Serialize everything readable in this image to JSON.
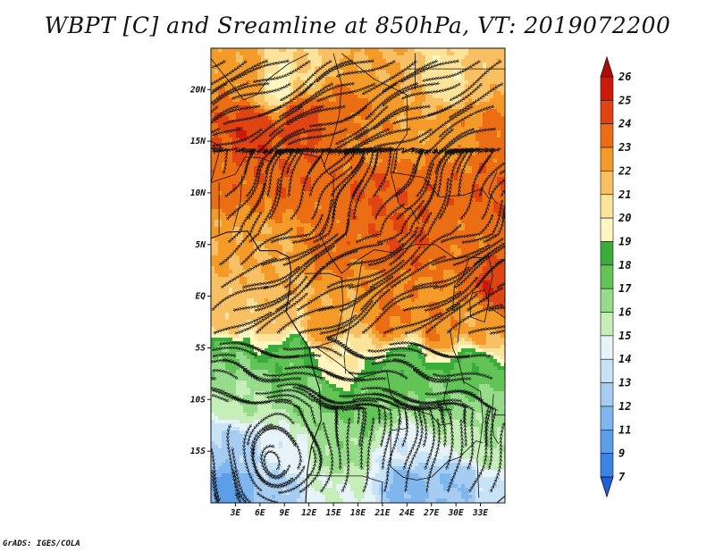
{
  "title": "WBPT [C] and Sreamline at 850hPa, VT: 2019072200",
  "footer": "GrADS: IGES/COLA",
  "chart_data": {
    "type": "heatmap",
    "variable": "WBPT [C]",
    "level": "850hPa",
    "valid_time": "2019072200",
    "overlay": "streamlines",
    "grid": false,
    "lon_range": [
      0,
      36
    ],
    "lat_range": [
      -20,
      24
    ],
    "x_ticks": [
      3,
      6,
      9,
      12,
      15,
      18,
      21,
      24,
      27,
      30,
      33
    ],
    "x_tick_labels": [
      "3E",
      "6E",
      "9E",
      "12E",
      "15E",
      "18E",
      "21E",
      "24E",
      "27E",
      "30E",
      "33E"
    ],
    "y_ticks": [
      20,
      15,
      10,
      5,
      0,
      -5,
      -10,
      -15
    ],
    "y_tick_labels": [
      "20N",
      "15N",
      "10N",
      "5N",
      "EQ",
      "5S",
      "10S",
      "15S"
    ],
    "colorbar": {
      "placement": "right",
      "levels": [
        7,
        9,
        11,
        12,
        13,
        14,
        15,
        16,
        17,
        18,
        19,
        20,
        21,
        22,
        23,
        24,
        25,
        26
      ],
      "labels": [
        "7",
        "9",
        "11",
        "12",
        "13",
        "14",
        "15",
        "16",
        "17",
        "18",
        "19",
        "20",
        "21",
        "22",
        "23",
        "24",
        "25",
        "26"
      ],
      "colors": [
        "#1e60d8",
        "#3c84e4",
        "#5c9ee8",
        "#80b6ee",
        "#a6ccf2",
        "#c8e2f6",
        "#e6f4fa",
        "#c6eeb8",
        "#96dc8a",
        "#62c456",
        "#3aac3a",
        "#fff6c0",
        "#fde49a",
        "#f8c062",
        "#f49a28",
        "#ec6e14",
        "#e04412",
        "#cc1a0a",
        "#b00c06"
      ]
    },
    "field_anchors": [
      {
        "lon": 5,
        "lat": 21,
        "value": 22.5
      },
      {
        "lon": 12,
        "lat": 22,
        "value": 21
      },
      {
        "lon": 18,
        "lat": 23,
        "value": 22
      },
      {
        "lon": 29,
        "lat": 21,
        "value": 20.3
      },
      {
        "lon": 33,
        "lat": 22,
        "value": 21.5
      },
      {
        "lon": 8,
        "lat": 20.5,
        "value": 19.5
      },
      {
        "lon": 5,
        "lat": 16,
        "value": 24.8
      },
      {
        "lon": 11,
        "lat": 17,
        "value": 24.5
      },
      {
        "lon": 16,
        "lat": 18,
        "value": 23.5
      },
      {
        "lon": 20,
        "lat": 15,
        "value": 22.8
      },
      {
        "lon": 25,
        "lat": 17,
        "value": 22.2
      },
      {
        "lon": 30,
        "lat": 16,
        "value": 22.5
      },
      {
        "lon": 35,
        "lat": 15,
        "value": 23.5
      },
      {
        "lon": 2,
        "lat": 11,
        "value": 23.5
      },
      {
        "lon": 10,
        "lat": 12,
        "value": 23.8
      },
      {
        "lon": 20,
        "lat": 10,
        "value": 24
      },
      {
        "lon": 28,
        "lat": 11,
        "value": 23.6
      },
      {
        "lon": 34,
        "lat": 10,
        "value": 23.8
      },
      {
        "lon": 2,
        "lat": 5,
        "value": 22.2
      },
      {
        "lon": 8,
        "lat": 3,
        "value": 22
      },
      {
        "lon": 15,
        "lat": 5,
        "value": 23.5
      },
      {
        "lon": 24,
        "lat": 6,
        "value": 24
      },
      {
        "lon": 32,
        "lat": 5,
        "value": 23.3
      },
      {
        "lon": 35,
        "lat": 1,
        "value": 24.8
      },
      {
        "lon": 2,
        "lat": -2,
        "value": 21.5
      },
      {
        "lon": 8,
        "lat": -2,
        "value": 21.5
      },
      {
        "lon": 14,
        "lat": -3,
        "value": 22.5
      },
      {
        "lon": 22,
        "lat": -2,
        "value": 23.2
      },
      {
        "lon": 28,
        "lat": -3,
        "value": 23
      },
      {
        "lon": 33,
        "lat": -3,
        "value": 22.3
      },
      {
        "lon": 2,
        "lat": -6,
        "value": 17
      },
      {
        "lon": 10,
        "lat": -6,
        "value": 17.5
      },
      {
        "lon": 16,
        "lat": -6,
        "value": 20
      },
      {
        "lon": 24,
        "lat": -7,
        "value": 17.5
      },
      {
        "lon": 32,
        "lat": -7,
        "value": 17.6
      },
      {
        "lon": 4,
        "lat": -10,
        "value": 16
      },
      {
        "lon": 12,
        "lat": -10,
        "value": 16.8
      },
      {
        "lon": 20,
        "lat": -10,
        "value": 17.3
      },
      {
        "lon": 28,
        "lat": -10,
        "value": 17
      },
      {
        "lon": 34,
        "lat": -11,
        "value": 16.5
      },
      {
        "lon": 3,
        "lat": -15,
        "value": 12.5
      },
      {
        "lon": 9,
        "lat": -15,
        "value": 14.5
      },
      {
        "lon": 16,
        "lat": -15,
        "value": 16.5
      },
      {
        "lon": 24,
        "lat": -15,
        "value": 14.2
      },
      {
        "lon": 31,
        "lat": -14,
        "value": 15.5
      },
      {
        "lon": 35,
        "lat": -15,
        "value": 16
      },
      {
        "lon": 2,
        "lat": -19,
        "value": 10.5
      },
      {
        "lon": 8,
        "lat": -19,
        "value": 12.5
      },
      {
        "lon": 16,
        "lat": -19,
        "value": 15
      },
      {
        "lon": 24,
        "lat": -18,
        "value": 11.5
      },
      {
        "lon": 30,
        "lat": -18,
        "value": 12
      },
      {
        "lon": 35,
        "lat": -19,
        "value": 13.5
      }
    ],
    "streamline_flow": "southwesterly monsoon flow over the Gulf of Guinea and central Africa, easterly flow in the north, anticyclonic circulation over southern Africa"
  }
}
